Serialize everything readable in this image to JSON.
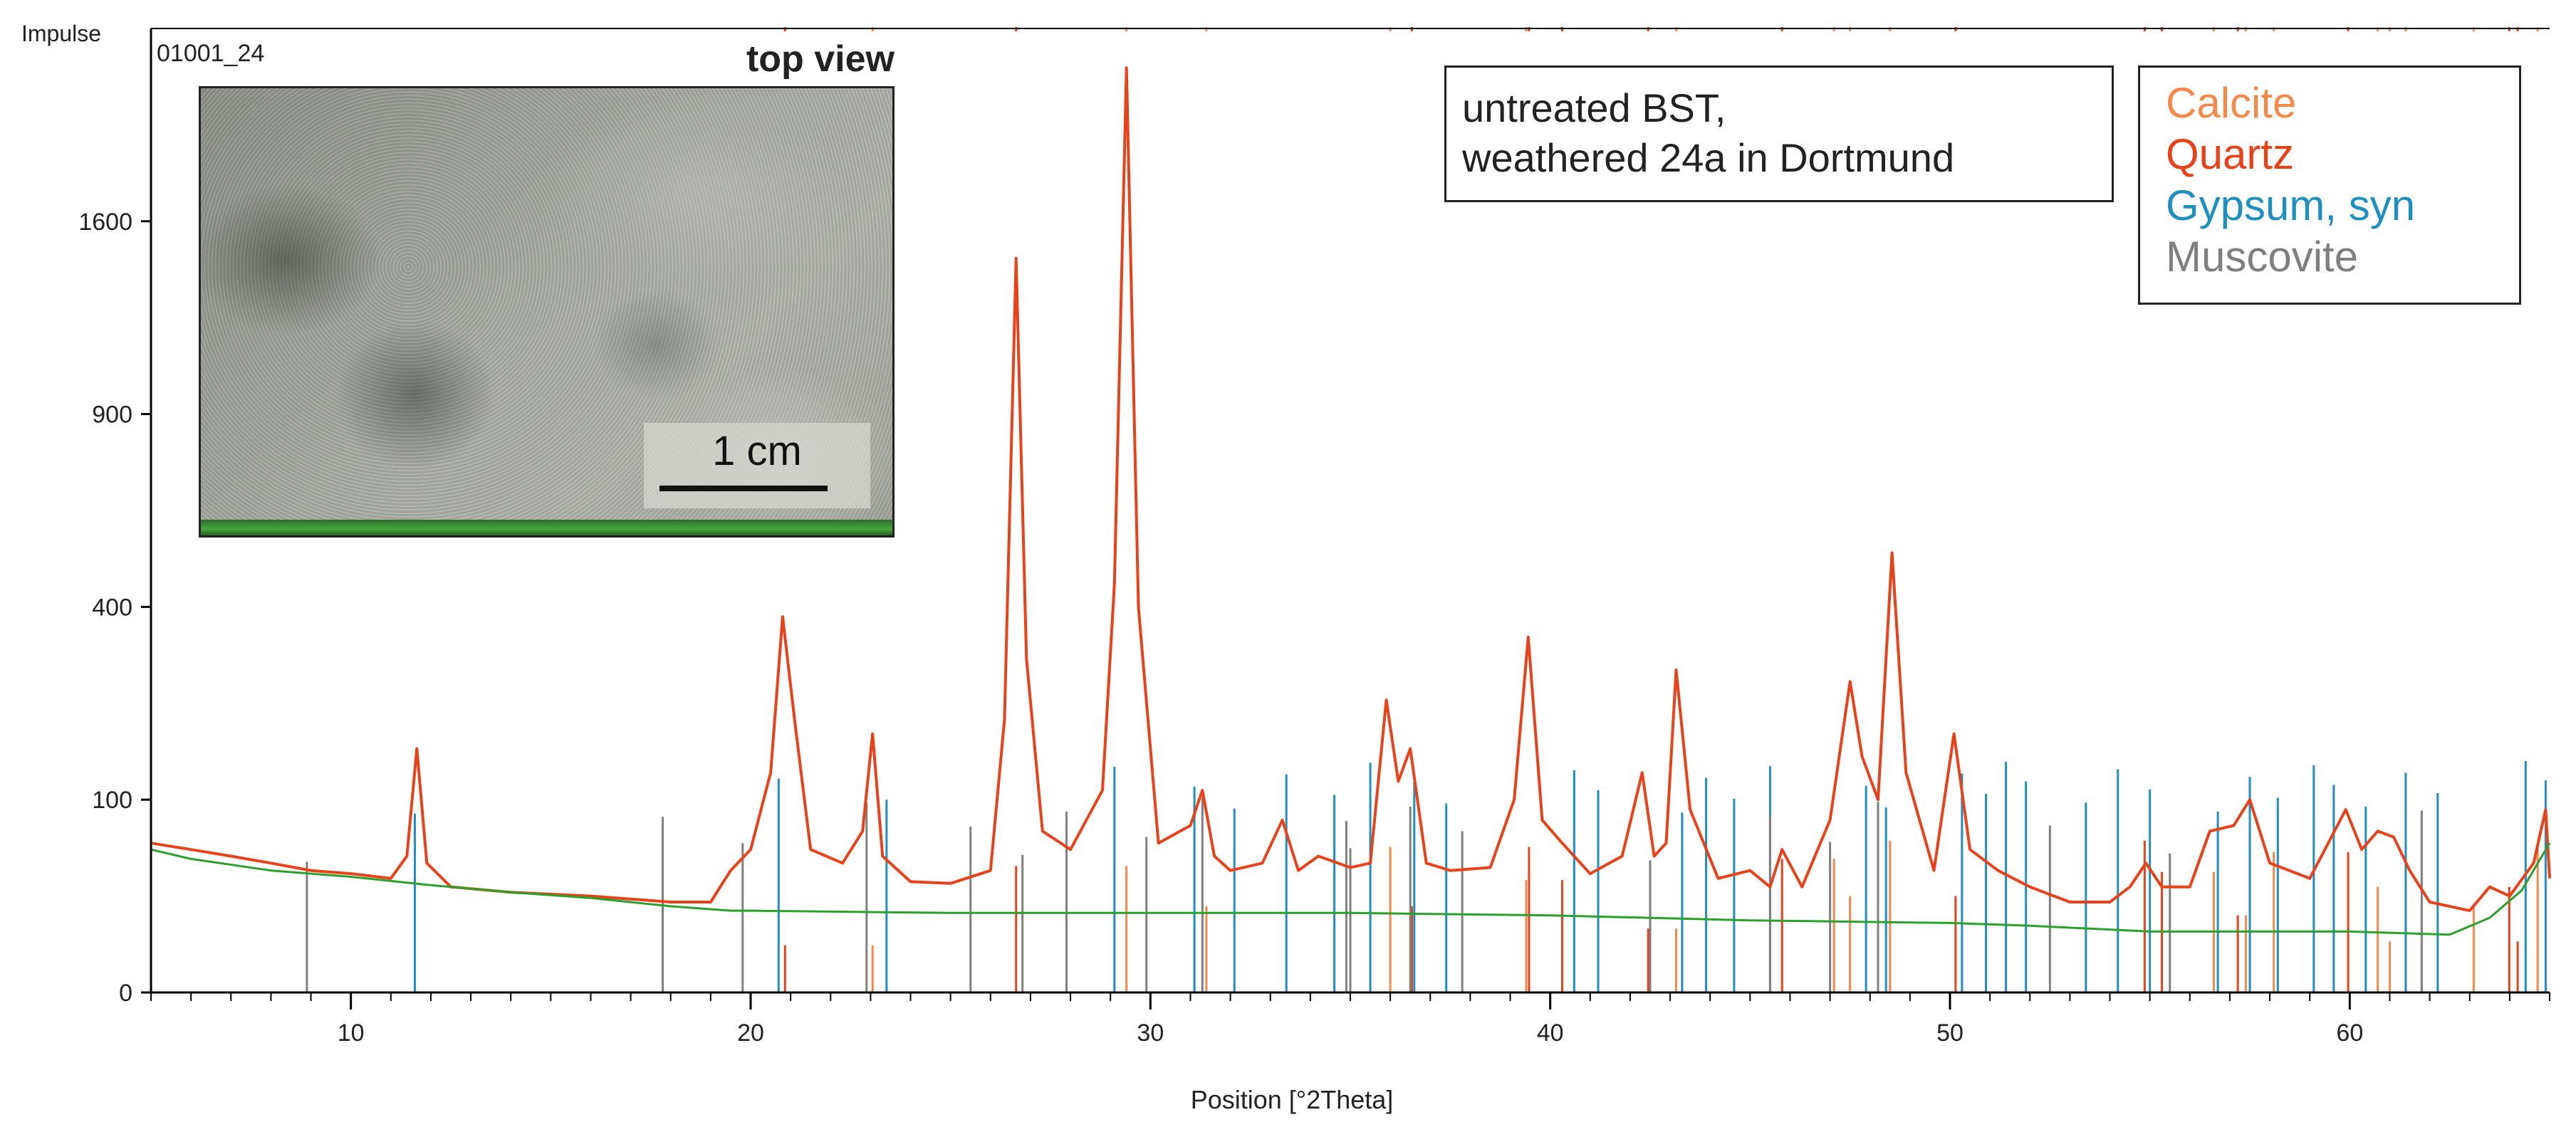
{
  "sample_id": "01001_24",
  "inset_photo": {
    "title": "top view",
    "scale_label": "1 cm"
  },
  "sample_box": {
    "line1": "untreated BST,",
    "line2": "weathered 24a in Dortmund"
  },
  "legend": [
    {
      "label": "Calcite",
      "color": "#f5894a"
    },
    {
      "label": "Quartz",
      "color": "#e8421b"
    },
    {
      "label": "Gypsum, syn",
      "color": "#1f8fbf"
    },
    {
      "label": "Muscovite",
      "color": "#7f7f7f"
    }
  ],
  "chart_data": {
    "type": "line",
    "title": "",
    "xlabel": "Position [°2Theta]",
    "ylabel": "Impulse",
    "xlim": [
      5,
      65
    ],
    "y_scale": "sqrt",
    "ylim": [
      0,
      2500
    ],
    "x_ticks": [
      10,
      20,
      30,
      40,
      50,
      60
    ],
    "y_ticks": [
      0,
      100,
      400,
      900,
      1600
    ],
    "series": [
      {
        "color": "#e8421b",
        "x": [
          5,
          6,
          7,
          8,
          9,
          10,
          11,
          11.4,
          11.65,
          11.9,
          12.5,
          14,
          16,
          18,
          19,
          19.5,
          20,
          20.5,
          20.8,
          21.1,
          21.5,
          22.3,
          22.8,
          23.05,
          23.3,
          24,
          25,
          26,
          26.35,
          26.64,
          26.9,
          27.3,
          28,
          28.8,
          29.1,
          29.4,
          29.7,
          30.2,
          31,
          31.3,
          31.6,
          32,
          32.8,
          33.3,
          33.7,
          34.2,
          35,
          35.5,
          35.9,
          36.2,
          36.5,
          36.9,
          37.5,
          38.5,
          39.1,
          39.45,
          39.8,
          40.3,
          41,
          41.8,
          42.3,
          42.6,
          42.9,
          43.15,
          43.5,
          44.2,
          45,
          45.5,
          45.8,
          46.3,
          47,
          47.5,
          47.8,
          48.2,
          48.55,
          48.9,
          49.6,
          50.1,
          50.5,
          51.2,
          52,
          53,
          54,
          54.5,
          54.9,
          55.3,
          56,
          56.5,
          57.1,
          57.5,
          58,
          59,
          59.9,
          60.3,
          60.7,
          61.1,
          61.5,
          62,
          63,
          63.5,
          64,
          64.6,
          64.9,
          65
        ],
        "y": [
          60,
          55,
          50,
          45,
          40,
          38,
          35,
          50,
          160,
          45,
          30,
          27,
          25,
          22,
          22,
          40,
          55,
          130,
          380,
          200,
          55,
          45,
          70,
          180,
          50,
          33,
          32,
          40,
          200,
          1450,
          300,
          70,
          55,
          110,
          450,
          2300,
          400,
          60,
          75,
          110,
          50,
          40,
          45,
          80,
          40,
          50,
          42,
          45,
          230,
          120,
          160,
          45,
          40,
          42,
          100,
          340,
          80,
          60,
          38,
          50,
          130,
          50,
          60,
          280,
          90,
          35,
          40,
          30,
          55,
          30,
          80,
          260,
          150,
          100,
          520,
          130,
          40,
          180,
          55,
          40,
          30,
          22,
          22,
          30,
          45,
          30,
          30,
          70,
          75,
          100,
          45,
          35,
          90,
          55,
          70,
          65,
          40,
          22,
          18,
          30,
          25,
          45,
          90,
          35
        ]
      },
      {
        "color": "#2ca02c",
        "x": [
          5,
          6,
          8,
          10,
          12,
          14,
          16,
          18,
          19.5,
          20,
          25,
          30,
          35,
          40,
          45,
          50,
          52,
          55,
          60,
          62.5,
          63.5,
          64.3,
          65
        ],
        "y": [
          55,
          48,
          40,
          36,
          31,
          27,
          24,
          20,
          18,
          18,
          17,
          17,
          17,
          16,
          14,
          13,
          12,
          10,
          10,
          9,
          15,
          28,
          60
        ]
      }
    ],
    "reference_lines": {
      "calcite": [
        23.05,
        29.4,
        31.4,
        36.0,
        39.4,
        43.15,
        47.1,
        47.5,
        48.5,
        56.6,
        57.4,
        58.1,
        60.7,
        61.0,
        61.4,
        63.1,
        64.7
      ],
      "quartz": [
        20.86,
        26.64,
        36.54,
        39.47,
        40.3,
        42.45,
        45.8,
        50.14,
        54.87,
        55.3,
        57.2,
        59.96,
        63.99,
        64.2
      ],
      "gypsum": [
        11.6,
        20.7,
        23.4,
        29.1,
        31.1,
        32.1,
        33.4,
        34.6,
        35.5,
        36.6,
        37.4,
        40.6,
        41.2,
        43.3,
        43.9,
        44.6,
        45.5,
        47.9,
        48.4,
        50.3,
        50.9,
        51.4,
        51.9,
        53.4,
        54.2,
        55.0,
        56.7,
        57.5,
        58.2,
        59.1,
        59.6,
        60.4,
        61.4,
        62.2,
        64.4,
        64.9
      ],
      "muscovite": [
        8.9,
        17.8,
        19.8,
        22.9,
        25.5,
        26.8,
        27.9,
        29.9,
        31.3,
        34.9,
        35.0,
        36.5,
        37.8,
        42.5,
        45.5,
        47.0,
        48.2,
        52.5,
        55.5,
        61.8
      ]
    }
  }
}
